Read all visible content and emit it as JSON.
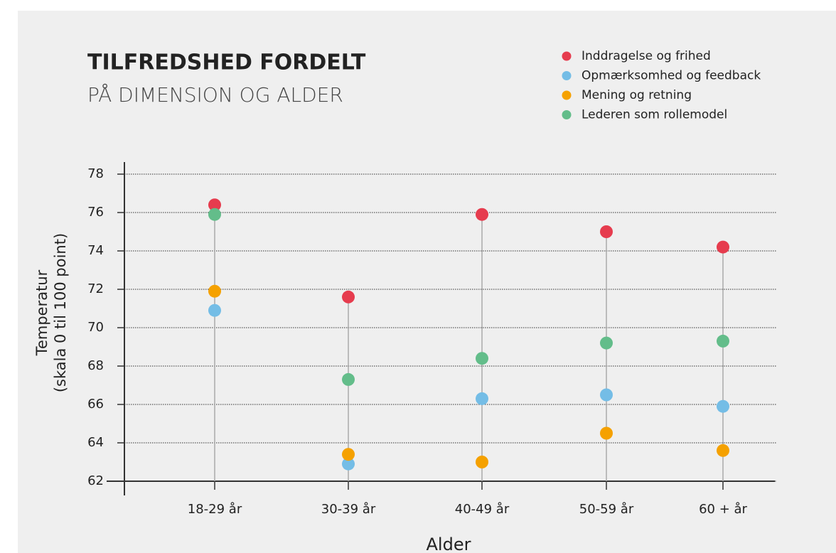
{
  "chart_data": {
    "type": "dot",
    "title": "TILFREDSHED FORDELT",
    "subtitle": "PÅ DIMENSION OG ALDER",
    "x_label": "Alder",
    "y_label": [
      "Temperatur",
      "(skala 0 til 100 point)"
    ],
    "categories": [
      "18-29 år",
      "30-39 år",
      "40-49 år",
      "50-59 år",
      "60 + år"
    ],
    "series": [
      {
        "name": "Inddragelse og frihed",
        "color": "#e63c4e",
        "values": [
          76.4,
          71.6,
          75.9,
          75.0,
          74.2
        ]
      },
      {
        "name": "Opmærksomhed og feedback",
        "color": "#74bde6",
        "values": [
          70.9,
          62.9,
          66.3,
          66.5,
          65.9
        ]
      },
      {
        "name": "Mening og retning",
        "color": "#f5a100",
        "values": [
          71.9,
          63.4,
          63.0,
          64.5,
          63.6
        ]
      },
      {
        "name": "Lederen som rollemodel",
        "color": "#63bd8a",
        "values": [
          75.9,
          67.3,
          68.4,
          69.2,
          69.3
        ]
      }
    ],
    "ylim": [
      62,
      78
    ],
    "yticks": [
      62,
      64,
      66,
      68,
      70,
      72,
      74,
      76,
      78
    ],
    "grid": true
  }
}
